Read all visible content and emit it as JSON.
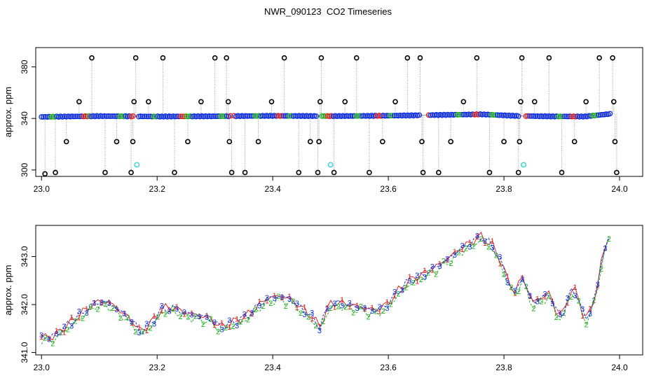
{
  "title": "NWR_090123  CO2 Timeseries",
  "chart_data": [
    {
      "type": "scatter",
      "ylabel": "approx. ppm",
      "xlim": [
        22.99,
        24.04
      ],
      "ylim": [
        295,
        395
      ],
      "xticks": [
        "23.0",
        "23.2",
        "23.4",
        "23.6",
        "23.8",
        "24.0"
      ],
      "yticks": [
        "300",
        "340",
        "380"
      ],
      "colors": {
        "line": "#9a9a9a",
        "outlier": "#000000",
        "main": "#1030e0",
        "flag": "#40d8d8",
        "mid": "#20b020",
        "low": "#e02020"
      },
      "baseline": [
        [
          23.0,
          341.2
        ],
        [
          23.1,
          341.8
        ],
        [
          23.2,
          341.5
        ],
        [
          23.3,
          341.7
        ],
        [
          23.4,
          342.0
        ],
        [
          23.5,
          341.8
        ],
        [
          23.6,
          342.1
        ],
        [
          23.66,
          342.5
        ],
        [
          23.76,
          343.2
        ],
        [
          23.82,
          342.0
        ],
        [
          23.88,
          341.6
        ],
        [
          23.94,
          341.5
        ],
        [
          23.985,
          343.6
        ]
      ],
      "gaps": [
        [
          23.16,
          23.165
        ],
        [
          23.328,
          23.332
        ],
        [
          23.478,
          23.485
        ],
        [
          23.655,
          23.668
        ],
        [
          23.825,
          23.835
        ]
      ],
      "outliers": [
        [
          23.006,
          297
        ],
        [
          23.024,
          298
        ],
        [
          23.043,
          322
        ],
        [
          23.065,
          353
        ],
        [
          23.087,
          387
        ],
        [
          23.11,
          298
        ],
        [
          23.13,
          322
        ],
        [
          23.155,
          298
        ],
        [
          23.158,
          322
        ],
        [
          23.16,
          353
        ],
        [
          23.163,
          387
        ],
        [
          23.185,
          353
        ],
        [
          23.21,
          387
        ],
        [
          23.23,
          298
        ],
        [
          23.253,
          322
        ],
        [
          23.276,
          353
        ],
        [
          23.3,
          387
        ],
        [
          23.32,
          387
        ],
        [
          23.323,
          353
        ],
        [
          23.325,
          322
        ],
        [
          23.329,
          298
        ],
        [
          23.352,
          298
        ],
        [
          23.375,
          322
        ],
        [
          23.398,
          353
        ],
        [
          23.42,
          387
        ],
        [
          23.445,
          298
        ],
        [
          23.465,
          322
        ],
        [
          23.478,
          298
        ],
        [
          23.48,
          322
        ],
        [
          23.482,
          353
        ],
        [
          23.484,
          387
        ],
        [
          23.506,
          298
        ],
        [
          23.525,
          353
        ],
        [
          23.545,
          387
        ],
        [
          23.567,
          298
        ],
        [
          23.59,
          322
        ],
        [
          23.612,
          353
        ],
        [
          23.633,
          387
        ],
        [
          23.655,
          387
        ],
        [
          23.658,
          322
        ],
        [
          23.66,
          298
        ],
        [
          23.687,
          298
        ],
        [
          23.708,
          322
        ],
        [
          23.73,
          353
        ],
        [
          23.753,
          387
        ],
        [
          23.775,
          298
        ],
        [
          23.8,
          322
        ],
        [
          23.825,
          298
        ],
        [
          23.827,
          322
        ],
        [
          23.829,
          353
        ],
        [
          23.831,
          387
        ],
        [
          23.853,
          353
        ],
        [
          23.878,
          387
        ],
        [
          23.9,
          298
        ],
        [
          23.922,
          322
        ],
        [
          23.942,
          353
        ],
        [
          23.965,
          387
        ],
        [
          23.988,
          387
        ],
        [
          23.99,
          353
        ],
        [
          23.992,
          322
        ],
        [
          23.995,
          298
        ]
      ],
      "flagged": [
        [
          23.165,
          304
        ],
        [
          23.5,
          304
        ],
        [
          23.834,
          304
        ]
      ]
    },
    {
      "type": "line",
      "ylabel": "approx. ppm",
      "xlim": [
        22.99,
        24.04
      ],
      "ylim": [
        340.95,
        343.65
      ],
      "xticks": [
        "23.0",
        "23.2",
        "23.4",
        "23.6",
        "23.8",
        "24.0"
      ],
      "yticks": [
        "341.0",
        "342.0",
        "343.0"
      ],
      "series": [
        {
          "symbol": "1",
          "color": "#e02020",
          "offset": 0.03,
          "values": [
            [
              23.0,
              341.3
            ],
            [
              23.02,
              341.3
            ],
            [
              23.04,
              341.5
            ],
            [
              23.06,
              341.7
            ],
            [
              23.08,
              341.9
            ],
            [
              23.1,
              342.05
            ],
            [
              23.12,
              342.0
            ],
            [
              23.14,
              341.8
            ],
            [
              23.16,
              341.6
            ],
            [
              23.17,
              341.4
            ],
            [
              23.19,
              341.6
            ],
            [
              23.21,
              341.9
            ],
            [
              23.23,
              341.9
            ],
            [
              23.25,
              341.8
            ],
            [
              23.27,
              341.75
            ],
            [
              23.29,
              341.7
            ],
            [
              23.31,
              341.5
            ],
            [
              23.33,
              341.6
            ],
            [
              23.35,
              341.7
            ],
            [
              23.37,
              341.9
            ],
            [
              23.39,
              342.1
            ],
            [
              23.41,
              342.15
            ],
            [
              23.43,
              342.1
            ],
            [
              23.45,
              341.9
            ],
            [
              23.47,
              341.7
            ],
            [
              23.48,
              341.5
            ],
            [
              23.5,
              342.0
            ],
            [
              23.52,
              342.0
            ],
            [
              23.54,
              341.95
            ],
            [
              23.56,
              341.9
            ],
            [
              23.58,
              341.85
            ],
            [
              23.6,
              342.0
            ],
            [
              23.62,
              342.3
            ],
            [
              23.64,
              342.5
            ],
            [
              23.66,
              342.6
            ],
            [
              23.68,
              342.75
            ],
            [
              23.7,
              342.9
            ],
            [
              23.72,
              343.1
            ],
            [
              23.74,
              343.25
            ],
            [
              23.76,
              343.4
            ],
            [
              23.78,
              343.2
            ],
            [
              23.79,
              343.0
            ],
            [
              23.8,
              342.7
            ],
            [
              23.81,
              342.4
            ],
            [
              23.82,
              342.2
            ],
            [
              23.83,
              342.6
            ],
            [
              23.84,
              342.3
            ],
            [
              23.85,
              342.0
            ],
            [
              23.86,
              342.1
            ],
            [
              23.88,
              342.2
            ],
            [
              23.89,
              341.85
            ],
            [
              23.9,
              341.7
            ],
            [
              23.91,
              342.1
            ],
            [
              23.92,
              342.3
            ],
            [
              23.93,
              342.1
            ],
            [
              23.94,
              341.6
            ],
            [
              23.95,
              341.9
            ],
            [
              23.96,
              342.2
            ],
            [
              23.97,
              343.0
            ],
            [
              23.98,
              343.35
            ],
            [
              23.985,
              343.4
            ]
          ]
        },
        {
          "symbol": "2",
          "color": "#20b020",
          "offset": -0.05,
          "values": [
            [
              23.0,
              341.3
            ],
            [
              23.02,
              341.3
            ],
            [
              23.04,
              341.5
            ],
            [
              23.06,
              341.7
            ],
            [
              23.08,
              341.9
            ],
            [
              23.1,
              342.05
            ],
            [
              23.12,
              342.0
            ],
            [
              23.14,
              341.8
            ],
            [
              23.16,
              341.6
            ],
            [
              23.17,
              341.4
            ],
            [
              23.19,
              341.6
            ],
            [
              23.21,
              341.9
            ],
            [
              23.23,
              341.9
            ],
            [
              23.25,
              341.8
            ],
            [
              23.27,
              341.75
            ],
            [
              23.29,
              341.7
            ],
            [
              23.31,
              341.5
            ],
            [
              23.33,
              341.6
            ],
            [
              23.35,
              341.7
            ],
            [
              23.37,
              341.9
            ],
            [
              23.39,
              342.1
            ],
            [
              23.41,
              342.15
            ],
            [
              23.43,
              342.1
            ],
            [
              23.45,
              341.9
            ],
            [
              23.47,
              341.7
            ],
            [
              23.48,
              341.5
            ],
            [
              23.5,
              342.0
            ],
            [
              23.52,
              342.0
            ],
            [
              23.54,
              341.95
            ],
            [
              23.56,
              341.9
            ],
            [
              23.58,
              341.85
            ],
            [
              23.6,
              342.0
            ],
            [
              23.62,
              342.3
            ],
            [
              23.64,
              342.5
            ],
            [
              23.66,
              342.6
            ],
            [
              23.68,
              342.75
            ],
            [
              23.7,
              342.9
            ],
            [
              23.72,
              343.1
            ],
            [
              23.74,
              343.25
            ],
            [
              23.76,
              343.4
            ],
            [
              23.78,
              343.2
            ],
            [
              23.79,
              343.0
            ],
            [
              23.8,
              342.7
            ],
            [
              23.81,
              342.4
            ],
            [
              23.82,
              342.2
            ],
            [
              23.83,
              342.6
            ],
            [
              23.84,
              342.3
            ],
            [
              23.85,
              342.0
            ],
            [
              23.86,
              342.1
            ],
            [
              23.88,
              342.2
            ],
            [
              23.89,
              341.85
            ],
            [
              23.9,
              341.7
            ],
            [
              23.91,
              342.1
            ],
            [
              23.92,
              342.3
            ],
            [
              23.93,
              342.1
            ],
            [
              23.94,
              341.6
            ],
            [
              23.95,
              341.9
            ],
            [
              23.96,
              342.2
            ],
            [
              23.97,
              343.0
            ],
            [
              23.98,
              343.35
            ],
            [
              23.985,
              343.4
            ]
          ]
        },
        {
          "symbol": "3",
          "color": "#1030e0",
          "offset": 0.02,
          "values": [
            [
              23.0,
              341.3
            ],
            [
              23.02,
              341.3
            ],
            [
              23.04,
              341.5
            ],
            [
              23.06,
              341.7
            ],
            [
              23.08,
              341.9
            ],
            [
              23.1,
              342.05
            ],
            [
              23.12,
              342.0
            ],
            [
              23.14,
              341.8
            ],
            [
              23.16,
              341.6
            ],
            [
              23.17,
              341.4
            ],
            [
              23.19,
              341.6
            ],
            [
              23.21,
              341.9
            ],
            [
              23.23,
              341.9
            ],
            [
              23.25,
              341.8
            ],
            [
              23.27,
              341.75
            ],
            [
              23.29,
              341.7
            ],
            [
              23.31,
              341.5
            ],
            [
              23.33,
              341.6
            ],
            [
              23.35,
              341.7
            ],
            [
              23.37,
              341.9
            ],
            [
              23.39,
              342.1
            ],
            [
              23.41,
              342.15
            ],
            [
              23.43,
              342.1
            ],
            [
              23.45,
              341.9
            ],
            [
              23.47,
              341.7
            ],
            [
              23.48,
              341.5
            ],
            [
              23.5,
              342.0
            ],
            [
              23.52,
              342.0
            ],
            [
              23.54,
              341.95
            ],
            [
              23.56,
              341.9
            ],
            [
              23.58,
              341.85
            ],
            [
              23.6,
              342.0
            ],
            [
              23.62,
              342.3
            ],
            [
              23.64,
              342.5
            ],
            [
              23.66,
              342.6
            ],
            [
              23.68,
              342.75
            ],
            [
              23.7,
              342.9
            ],
            [
              23.72,
              343.1
            ],
            [
              23.74,
              343.25
            ],
            [
              23.76,
              343.4
            ],
            [
              23.78,
              343.2
            ],
            [
              23.79,
              343.0
            ],
            [
              23.8,
              342.7
            ],
            [
              23.81,
              342.4
            ],
            [
              23.82,
              342.2
            ],
            [
              23.83,
              342.6
            ],
            [
              23.84,
              342.3
            ],
            [
              23.85,
              342.0
            ],
            [
              23.86,
              342.1
            ],
            [
              23.88,
              342.2
            ],
            [
              23.89,
              341.85
            ],
            [
              23.9,
              341.7
            ],
            [
              23.91,
              342.1
            ],
            [
              23.92,
              342.3
            ],
            [
              23.93,
              342.1
            ],
            [
              23.94,
              341.6
            ],
            [
              23.95,
              341.9
            ],
            [
              23.96,
              342.2
            ],
            [
              23.97,
              343.0
            ],
            [
              23.98,
              343.35
            ],
            [
              23.985,
              343.4
            ]
          ]
        }
      ]
    }
  ]
}
